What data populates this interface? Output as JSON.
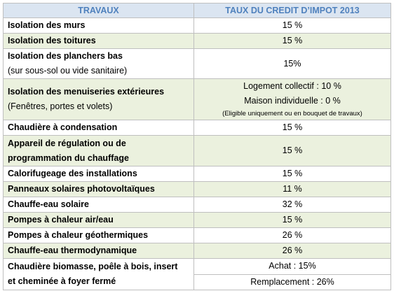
{
  "table": {
    "header": [
      "TRAVAUX",
      "TAUX DU CREDIT D’IMPOT 2013"
    ],
    "rows": [
      {
        "label": [
          "Isolation des murs"
        ],
        "rate": [
          [
            "15 %"
          ]
        ]
      },
      {
        "label": [
          "Isolation des toitures"
        ],
        "rate": [
          [
            "15 %"
          ]
        ]
      },
      {
        "label": [
          "Isolation des planchers bas"
        ],
        "note": "(sur sous-sol ou vide sanitaire)",
        "rate": [
          [
            "15%"
          ]
        ]
      },
      {
        "label": [
          "Isolation des menuiseries extérieures"
        ],
        "note": "(Fenêtres, portes et volets)",
        "rate": [
          [
            "Logement collectif : 10 %",
            "Maison individuelle : 0 %"
          ]
        ],
        "rate_note": "(Eligible uniquement ou en bouquet de travaux)"
      },
      {
        "label": [
          "Chaudière à condensation"
        ],
        "rate": [
          [
            "15 %"
          ]
        ]
      },
      {
        "label": [
          "Appareil de régulation ou de",
          "programmation du chauffage"
        ],
        "rate": [
          [
            "15 %"
          ]
        ]
      },
      {
        "label": [
          "Calorifugeage des installations"
        ],
        "rate": [
          [
            "15 %"
          ]
        ]
      },
      {
        "label": [
          "Panneaux solaires photovoltaïques"
        ],
        "rate": [
          [
            "11 %"
          ]
        ]
      },
      {
        "label": [
          "Chauffe-eau solaire"
        ],
        "rate": [
          [
            "32 %"
          ]
        ]
      },
      {
        "label": [
          "Pompes à chaleur air/eau"
        ],
        "rate": [
          [
            "15 %"
          ]
        ]
      },
      {
        "label": [
          "Pompes à chaleur géothermiques"
        ],
        "rate": [
          [
            "26 %"
          ]
        ]
      },
      {
        "label": [
          "Chauffe-eau thermodynamique"
        ],
        "rate": [
          [
            "26 %"
          ]
        ]
      },
      {
        "label": [
          "Chaudière biomasse, poêle à bois, insert",
          "et cheminée à foyer fermé"
        ],
        "rate": [
          [
            "Achat : 15%"
          ],
          [
            "Remplacement : 26%"
          ]
        ]
      }
    ]
  }
}
